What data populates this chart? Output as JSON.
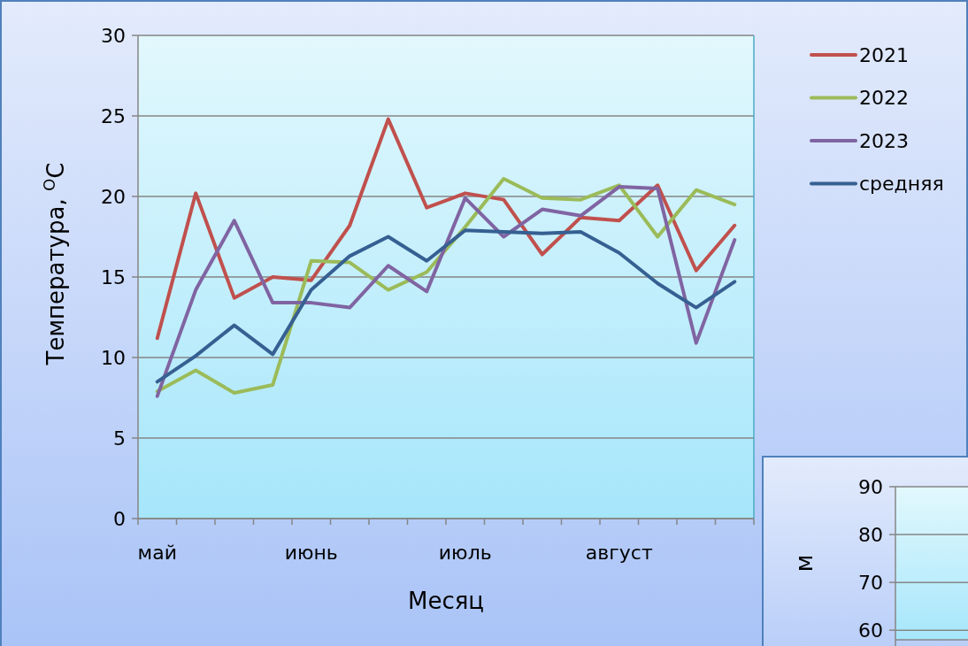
{
  "chart_data": [
    {
      "type": "line",
      "xlabel": "Месяц",
      "ylabel": "Температура, $^{O}$C",
      "categories": [
        "май",
        null,
        null,
        null,
        "июнь",
        null,
        null,
        null,
        "июль",
        null,
        null,
        null,
        "август",
        null,
        null,
        null
      ],
      "ylim": [
        0,
        30
      ],
      "yticks": [
        0,
        5,
        10,
        15,
        20,
        25,
        30
      ],
      "grid": "y",
      "legend": "top right",
      "marker": "none",
      "line_style": "solid",
      "series": [
        {
          "name": "2021",
          "color": "#c0504d",
          "values": [
            11.2,
            20.2,
            13.7,
            15.0,
            14.8,
            18.2,
            24.8,
            19.3,
            20.2,
            19.8,
            16.4,
            18.7,
            18.5,
            20.7,
            15.4,
            18.2
          ]
        },
        {
          "name": "2022",
          "color": "#9bbb59",
          "values": [
            7.9,
            9.2,
            7.8,
            8.3,
            16.0,
            15.9,
            14.2,
            15.3,
            18.1,
            21.1,
            19.9,
            19.8,
            20.7,
            17.5,
            20.4,
            19.5
          ]
        },
        {
          "name": "2023",
          "color": "#8064a2",
          "values": [
            7.6,
            14.2,
            18.5,
            13.4,
            13.4,
            13.1,
            15.7,
            14.1,
            19.9,
            17.5,
            19.2,
            18.8,
            20.6,
            20.5,
            10.9,
            17.3
          ]
        },
        {
          "name": "средняя",
          "color": "#366092",
          "values": [
            8.5,
            10.1,
            12.0,
            10.2,
            14.2,
            16.3,
            17.5,
            16.0,
            17.9,
            17.8,
            17.7,
            17.8,
            16.5,
            14.6,
            13.1,
            14.7
          ]
        }
      ]
    },
    {
      "type": "line",
      "ylabel": "м",
      "categories": [
        null
      ],
      "ylim": [
        58,
        90
      ],
      "yticks": [
        60,
        70,
        80,
        90
      ],
      "grid": "y"
    }
  ]
}
